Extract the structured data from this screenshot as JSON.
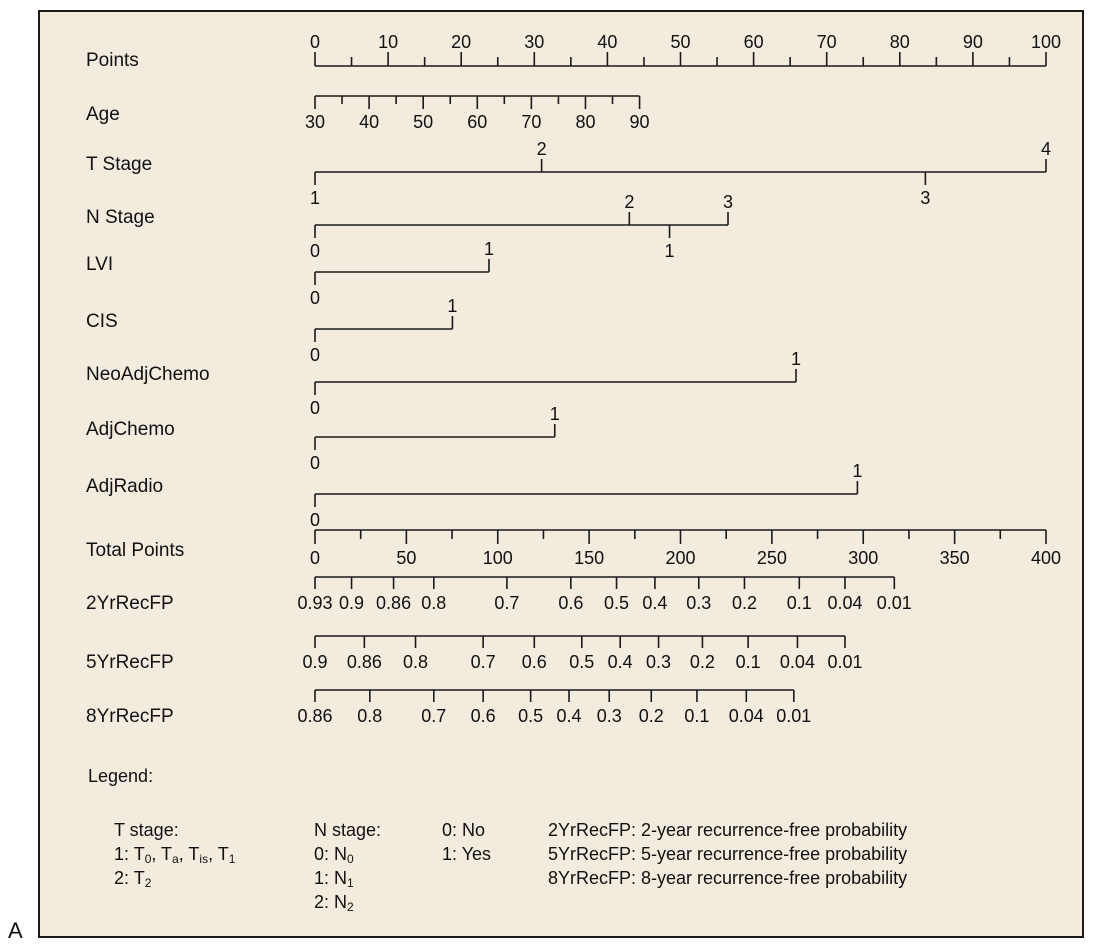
{
  "panel_label": "A",
  "chart_data": {
    "type": "nomogram",
    "points_scale": {
      "label": "Points",
      "min": 0,
      "max": 100,
      "labeled_ticks": [
        0,
        10,
        20,
        30,
        40,
        50,
        60,
        70,
        80,
        90,
        100
      ],
      "minor_step": 5
    },
    "variables": [
      {
        "label": "Age",
        "ticks": [
          {
            "v": "30",
            "p": 0
          },
          {
            "v": "40",
            "p": 7.4
          },
          {
            "v": "50",
            "p": 14.8
          },
          {
            "v": "60",
            "p": 22.2
          },
          {
            "v": "70",
            "p": 29.6
          },
          {
            "v": "80",
            "p": 37.0
          },
          {
            "v": "90",
            "p": 44.4
          }
        ],
        "minor_ticks": [
          3.7,
          11.1,
          18.5,
          25.9,
          33.3,
          40.7
        ],
        "labels_below": true
      },
      {
        "label": "T Stage",
        "ticks": [
          {
            "v": "1",
            "p": 0,
            "pos": "below"
          },
          {
            "v": "2",
            "p": 31,
            "pos": "above"
          },
          {
            "v": "3",
            "p": 83.5,
            "pos": "below"
          },
          {
            "v": "4",
            "p": 100,
            "pos": "above"
          }
        ]
      },
      {
        "label": "N Stage",
        "ticks": [
          {
            "v": "0",
            "p": 0,
            "pos": "below"
          },
          {
            "v": "2",
            "p": 43,
            "pos": "above"
          },
          {
            "v": "1",
            "p": 48.5,
            "pos": "below"
          },
          {
            "v": "3",
            "p": 56.5,
            "pos": "above"
          }
        ]
      },
      {
        "label": "LVI",
        "ticks": [
          {
            "v": "0",
            "p": 0,
            "pos": "below"
          },
          {
            "v": "1",
            "p": 23.8,
            "pos": "above"
          }
        ]
      },
      {
        "label": "CIS",
        "ticks": [
          {
            "v": "0",
            "p": 0,
            "pos": "below"
          },
          {
            "v": "1",
            "p": 18.8,
            "pos": "above"
          }
        ]
      },
      {
        "label": "NeoAdjChemo",
        "ticks": [
          {
            "v": "0",
            "p": 0,
            "pos": "below"
          },
          {
            "v": "1",
            "p": 65.8,
            "pos": "above"
          }
        ]
      },
      {
        "label": "AdjChemo",
        "ticks": [
          {
            "v": "0",
            "p": 0,
            "pos": "below"
          },
          {
            "v": "1",
            "p": 32.8,
            "pos": "above"
          }
        ]
      },
      {
        "label": "AdjRadio",
        "ticks": [
          {
            "v": "0",
            "p": 0,
            "pos": "below"
          },
          {
            "v": "1",
            "p": 74.2,
            "pos": "above"
          }
        ]
      }
    ],
    "total_points_scale": {
      "label": "Total Points",
      "min": 0,
      "max": 400,
      "labeled_ticks": [
        0,
        50,
        100,
        150,
        200,
        250,
        300,
        350,
        400
      ],
      "minor_step": 25
    },
    "probability_scales": [
      {
        "label": "2YrRecFP",
        "ticks": [
          {
            "v": "0.93",
            "t": 0
          },
          {
            "v": "0.9",
            "t": 20
          },
          {
            "v": "0.86",
            "t": 43
          },
          {
            "v": "0.8",
            "t": 65
          },
          {
            "v": "0.7",
            "t": 105
          },
          {
            "v": "0.6",
            "t": 140
          },
          {
            "v": "0.5",
            "t": 165
          },
          {
            "v": "0.4",
            "t": 186
          },
          {
            "v": "0.3",
            "t": 210
          },
          {
            "v": "0.2",
            "t": 235
          },
          {
            "v": "0.1",
            "t": 265
          },
          {
            "v": "0.04",
            "t": 290
          },
          {
            "v": "0.01",
            "t": 317
          }
        ]
      },
      {
        "label": "5YrRecFP",
        "ticks": [
          {
            "v": "0.9",
            "t": 0
          },
          {
            "v": "0.86",
            "t": 27
          },
          {
            "v": "0.8",
            "t": 55
          },
          {
            "v": "0.7",
            "t": 92
          },
          {
            "v": "0.6",
            "t": 120
          },
          {
            "v": "0.5",
            "t": 146
          },
          {
            "v": "0.4",
            "t": 167
          },
          {
            "v": "0.3",
            "t": 188
          },
          {
            "v": "0.2",
            "t": 212
          },
          {
            "v": "0.1",
            "t": 237
          },
          {
            "v": "0.04",
            "t": 264
          },
          {
            "v": "0.01",
            "t": 290
          }
        ]
      },
      {
        "label": "8YrRecFP",
        "ticks": [
          {
            "v": "0.86",
            "t": 0
          },
          {
            "v": "0.8",
            "t": 30
          },
          {
            "v": "0.7",
            "t": 65
          },
          {
            "v": "0.6",
            "t": 92
          },
          {
            "v": "0.5",
            "t": 118
          },
          {
            "v": "0.4",
            "t": 139
          },
          {
            "v": "0.3",
            "t": 161
          },
          {
            "v": "0.2",
            "t": 184
          },
          {
            "v": "0.1",
            "t": 209
          },
          {
            "v": "0.04",
            "t": 236
          },
          {
            "v": "0.01",
            "t": 262
          }
        ]
      }
    ]
  },
  "legend": {
    "heading": "Legend:",
    "t_stage": {
      "title": "T stage:",
      "item1_prefix": "1: T",
      "item1_s0": "0",
      "item1_ta": "a",
      "item1_tis": "is",
      "item1_t1": "1",
      "sep": ", T",
      "item2_prefix": "2: T",
      "item2_sub": "2"
    },
    "n_stage": {
      "title": "N stage:",
      "item0_prefix": "0: N",
      "item0_sub": "0",
      "item1_prefix": "1: N",
      "item1_sub": "1",
      "item2_prefix": "2: N",
      "item2_sub": "2"
    },
    "binary": {
      "no": "0: No",
      "yes": "1: Yes"
    },
    "probabilities": [
      "2YrRecFP: 2-year recurrence-free probability",
      "5YrRecFP: 5-year recurrence-free probability",
      "8YrRecFP: 8-year recurrence-free probability"
    ]
  }
}
